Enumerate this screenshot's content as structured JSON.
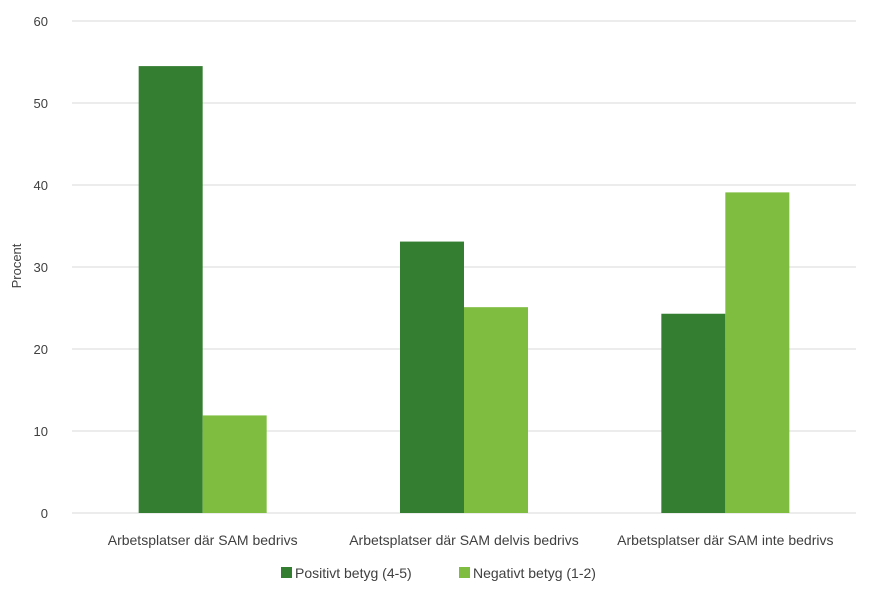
{
  "chart_data": {
    "type": "bar",
    "title": "",
    "xlabel": "",
    "ylabel": "Procent",
    "ylim": [
      0,
      60
    ],
    "yticks": [
      0,
      10,
      20,
      30,
      40,
      50,
      60
    ],
    "grid": true,
    "legend_position": "bottom",
    "categories": [
      "Arbetsplatser där SAM bedrivs",
      "Arbetsplatser där SAM delvis bedrivs",
      "Arbetsplatser där SAM inte bedrivs"
    ],
    "series": [
      {
        "name": "Positivt betyg (4-5)",
        "color": "#347e32",
        "values": [
          54.5,
          33.1,
          24.3
        ]
      },
      {
        "name": "Negativt betyg (1-2)",
        "color": "#7fbd41",
        "values": [
          11.9,
          25.1,
          39.1
        ]
      }
    ]
  },
  "colors": {
    "grid": "#d9d9d9",
    "text": "#404040"
  }
}
